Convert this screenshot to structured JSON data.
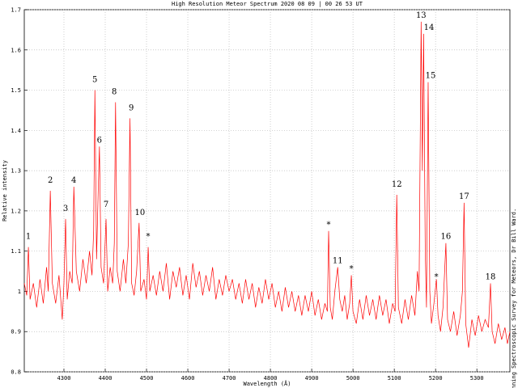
{
  "chart_data": {
    "type": "line",
    "title": "High Resolution Meteor Spectrum 2020 08 09 | 00 26 53 UT",
    "x_label": "Wavelength (Å)",
    "y_label": "Relative intensity",
    "side_note": "Kilwinning Spectroscopic Survey for Meteors, Dr Bill Ward.",
    "grid": true,
    "color": "#ff0000",
    "xlim": [
      4204,
      5380
    ],
    "ylim": [
      0.8,
      1.7
    ],
    "xticks": [
      4300,
      4400,
      4500,
      4600,
      4700,
      4800,
      4900,
      5000,
      5100,
      5200,
      5300
    ],
    "yticks": [
      0.8,
      0.9,
      1,
      1.1,
      1.2,
      1.3,
      1.4,
      1.5,
      1.6,
      1.7
    ],
    "x": [
      4204,
      4210,
      4214,
      4218,
      4226,
      4234,
      4242,
      4250,
      4258,
      4262,
      4267,
      4272,
      4280,
      4288,
      4296,
      4300,
      4304,
      4308,
      4314,
      4320,
      4324,
      4330,
      4338,
      4346,
      4354,
      4362,
      4368,
      4372,
      4375,
      4379,
      4383,
      4386,
      4390,
      4396,
      4402,
      4406,
      4412,
      4418,
      4422,
      4425,
      4429,
      4436,
      4444,
      4450,
      4456,
      4460,
      4464,
      4470,
      4476,
      4482,
      4486,
      4494,
      4500,
      4504,
      4508,
      4516,
      4524,
      4532,
      4540,
      4548,
      4556,
      4564,
      4572,
      4580,
      4588,
      4596,
      4604,
      4612,
      4620,
      4628,
      4636,
      4644,
      4652,
      4660,
      4668,
      4676,
      4684,
      4692,
      4700,
      4708,
      4716,
      4724,
      4732,
      4740,
      4748,
      4756,
      4764,
      4772,
      4780,
      4788,
      4796,
      4804,
      4812,
      4820,
      4828,
      4836,
      4844,
      4852,
      4860,
      4868,
      4876,
      4884,
      4892,
      4900,
      4908,
      4916,
      4924,
      4932,
      4938,
      4941,
      4945,
      4950,
      4956,
      4963,
      4968,
      4974,
      4980,
      4986,
      4992,
      4996,
      5000,
      5008,
      5016,
      5024,
      5032,
      5040,
      5048,
      5056,
      5064,
      5072,
      5080,
      5088,
      5096,
      5102,
      5106,
      5110,
      5118,
      5126,
      5134,
      5142,
      5150,
      5156,
      5160,
      5165,
      5168,
      5171,
      5175,
      5178,
      5182,
      5186,
      5190,
      5196,
      5202,
      5206,
      5212,
      5218,
      5225,
      5229,
      5236,
      5244,
      5252,
      5260,
      5265,
      5269,
      5273,
      5280,
      5288,
      5296,
      5304,
      5312,
      5320,
      5328,
      5333,
      5337,
      5344,
      5352,
      5360,
      5368,
      5374,
      5380
    ],
    "values": [
      1.02,
      0.99,
      1.11,
      0.98,
      1.02,
      0.96,
      1.03,
      0.97,
      1.06,
      1.0,
      1.25,
      1.02,
      0.97,
      1.04,
      0.93,
      1.02,
      1.18,
      0.98,
      1.05,
      1.02,
      1.26,
      1.05,
      1.0,
      1.08,
      1.02,
      1.1,
      1.04,
      1.15,
      1.5,
      1.08,
      1.25,
      1.36,
      1.06,
      1.02,
      1.18,
      1.0,
      1.06,
      1.02,
      1.12,
      1.47,
      1.05,
      1.0,
      1.08,
      1.02,
      1.12,
      1.43,
      1.02,
      0.99,
      1.05,
      1.17,
      1.0,
      1.03,
      0.98,
      1.11,
      1.0,
      1.04,
      0.99,
      1.05,
      1.0,
      1.07,
      0.98,
      1.05,
      1.01,
      1.06,
      0.99,
      1.04,
      0.98,
      1.07,
      1.01,
      1.05,
      0.99,
      1.04,
      1.0,
      1.06,
      0.98,
      1.03,
      0.99,
      1.04,
      1.0,
      1.03,
      0.98,
      1.02,
      0.97,
      1.03,
      0.98,
      1.02,
      0.96,
      1.01,
      0.97,
      1.03,
      0.98,
      1.02,
      0.96,
      1.0,
      0.95,
      1.01,
      0.96,
      1.0,
      0.95,
      0.99,
      0.94,
      0.99,
      0.95,
      1.0,
      0.94,
      0.98,
      0.93,
      0.97,
      0.95,
      1.15,
      0.96,
      0.93,
      1.0,
      1.06,
      0.98,
      0.95,
      0.99,
      0.93,
      0.97,
      1.04,
      0.95,
      0.92,
      0.98,
      0.93,
      0.99,
      0.94,
      0.98,
      0.93,
      0.99,
      0.94,
      0.98,
      0.92,
      0.97,
      0.95,
      1.24,
      0.96,
      0.92,
      0.98,
      0.93,
      0.99,
      0.94,
      1.05,
      1.0,
      1.67,
      1.3,
      1.64,
      1.1,
      0.96,
      1.52,
      1.0,
      0.92,
      0.97,
      1.03,
      0.94,
      0.9,
      0.96,
      1.12,
      0.93,
      0.9,
      0.95,
      0.89,
      0.94,
      1.0,
      1.22,
      0.92,
      0.86,
      0.93,
      0.89,
      0.94,
      0.9,
      0.93,
      0.91,
      1.02,
      0.9,
      0.87,
      0.92,
      0.88,
      0.91,
      0.87,
      0.9
    ],
    "annotations": [
      {
        "text": "1",
        "x": 4214,
        "y": 1.13
      },
      {
        "text": "2",
        "x": 4267,
        "y": 1.27
      },
      {
        "text": "3",
        "x": 4304,
        "y": 1.2
      },
      {
        "text": "4",
        "x": 4324,
        "y": 1.27
      },
      {
        "text": "5",
        "x": 4375,
        "y": 1.52
      },
      {
        "text": "6",
        "x": 4386,
        "y": 1.37
      },
      {
        "text": "7",
        "x": 4402,
        "y": 1.21
      },
      {
        "text": "8",
        "x": 4422,
        "y": 1.49
      },
      {
        "text": "9",
        "x": 4463,
        "y": 1.45
      },
      {
        "text": "10",
        "x": 4484,
        "y": 1.19
      },
      {
        "text": "*",
        "x": 4504,
        "y": 1.13
      },
      {
        "text": "*",
        "x": 4941,
        "y": 1.16
      },
      {
        "text": "11",
        "x": 4963,
        "y": 1.07
      },
      {
        "text": "*",
        "x": 4996,
        "y": 1.05
      },
      {
        "text": "12",
        "x": 5106,
        "y": 1.26
      },
      {
        "text": "13",
        "x": 5165,
        "y": 1.68
      },
      {
        "text": "14",
        "x": 5184,
        "y": 1.65
      },
      {
        "text": "15",
        "x": 5188,
        "y": 1.53
      },
      {
        "text": "*",
        "x": 5202,
        "y": 1.03
      },
      {
        "text": "16",
        "x": 5225,
        "y": 1.13
      },
      {
        "text": "17",
        "x": 5269,
        "y": 1.23
      },
      {
        "text": "18",
        "x": 5333,
        "y": 1.03
      }
    ]
  }
}
